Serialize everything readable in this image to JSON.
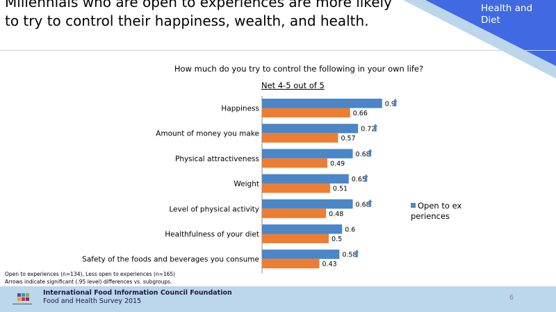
{
  "slide": {
    "title": "Millennials who are open to experiences are more likely to try to control their happiness, wealth, and health.",
    "section_label": "Health and Diet",
    "page_number": "6",
    "notes": [
      "Open to experiences (n=134), Less open to experiences (n=165)",
      "Arrows indicate significant (.95 level) differences vs. subgroups."
    ],
    "footer": {
      "organization": "International Food Information Council Foundation",
      "survey": "Food and Health Survey 2015"
    },
    "colors": {
      "corner_blue": "#4169e1",
      "corner_light": "#bcd6ec",
      "footer_bg": "#bcd6ec"
    }
  },
  "chart_data": {
    "type": "bar",
    "orientation": "horizontal",
    "title": "How much do you try to control the following in your own life?",
    "subtitle": "Net 4-5 out of 5",
    "categories": [
      "Happiness",
      "Amount of money you make",
      "Physical attractiveness",
      "Weight",
      "Level of physical activity",
      "Healthfulness of your diet",
      "Safety of the foods and beverages you consume"
    ],
    "series": [
      {
        "name": "Open to experiences",
        "color": "#4a86c8",
        "values": [
          0.9,
          0.72,
          0.68,
          0.65,
          0.68,
          0.6,
          0.58
        ],
        "labels": [
          "0.9",
          "0.72",
          "0.68",
          "0.65",
          "0.68",
          "0.6",
          "0.58"
        ],
        "significant_up": [
          true,
          true,
          true,
          true,
          true,
          false,
          true
        ]
      },
      {
        "color": "#ed7d31",
        "values": [
          0.66,
          0.57,
          0.49,
          0.51,
          0.48,
          0.5,
          0.43
        ],
        "labels": [
          "0.66",
          "0.57",
          "0.49",
          "0.51",
          "0.48",
          "0.5",
          "0.43"
        ]
      }
    ],
    "xlim": [
      0,
      1
    ],
    "legend_position": "right",
    "grid": false
  }
}
